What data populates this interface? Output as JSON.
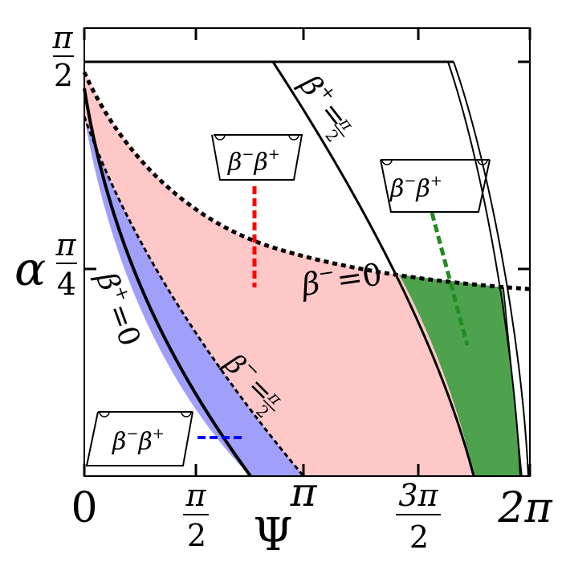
{
  "axes": {
    "xlabel": "Ψ",
    "ylabel": "α",
    "xticks": [
      {
        "num": "0"
      },
      {
        "num": "π",
        "den": "2"
      },
      {
        "num": "π"
      },
      {
        "num": "3π",
        "den": "2"
      },
      {
        "num": "2π"
      }
    ],
    "yticks": [
      {
        "num": "π",
        "den": "4"
      },
      {
        "num": "π",
        "den": "2"
      }
    ]
  },
  "curve_labels": {
    "beta_plus_zero": {
      "beta": "β",
      "sup": "+",
      "eq": "=0"
    },
    "beta_plus_half_pi": {
      "beta": "β",
      "sup": "+",
      "eq": "=",
      "num": "π",
      "den": "2"
    },
    "beta_minus_zero": {
      "beta": "β",
      "sup": "−",
      "eq": "=0"
    },
    "beta_minus_half_pi": {
      "beta": "β",
      "sup": "−",
      "eq": "=",
      "num": "π",
      "den": "2"
    }
  },
  "insets": {
    "red": {
      "b1": "β",
      "s1": "−",
      "b2": "β",
      "s2": "+"
    },
    "green": {
      "b1": "β",
      "s1": "−",
      "b2": "β",
      "s2": "+"
    },
    "blue": {
      "b1": "β",
      "s1": "−",
      "b2": "β",
      "s2": "+"
    }
  },
  "colors": {
    "pink_region": "#ffc8c8",
    "blue_region": "#a0a0fa",
    "green_region": "#4ea24e",
    "red_marker": "#ff0000",
    "green_marker": "#228b22",
    "blue_marker": "#0000ff"
  }
}
